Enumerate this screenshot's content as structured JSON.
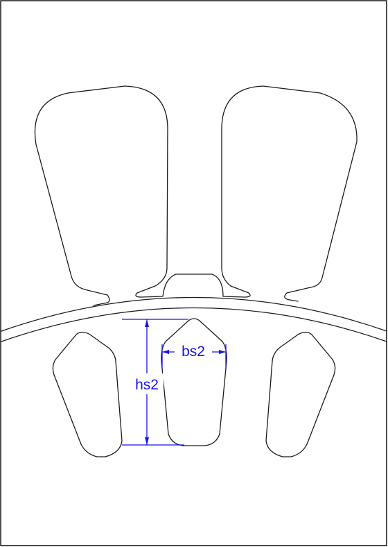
{
  "dimensions": {
    "slot_width_label": "bs2",
    "slot_height_label": "hs2"
  },
  "colors": {
    "outline": "#1a1a1a",
    "dimension": "#1414e6",
    "background": "#ffffff"
  }
}
